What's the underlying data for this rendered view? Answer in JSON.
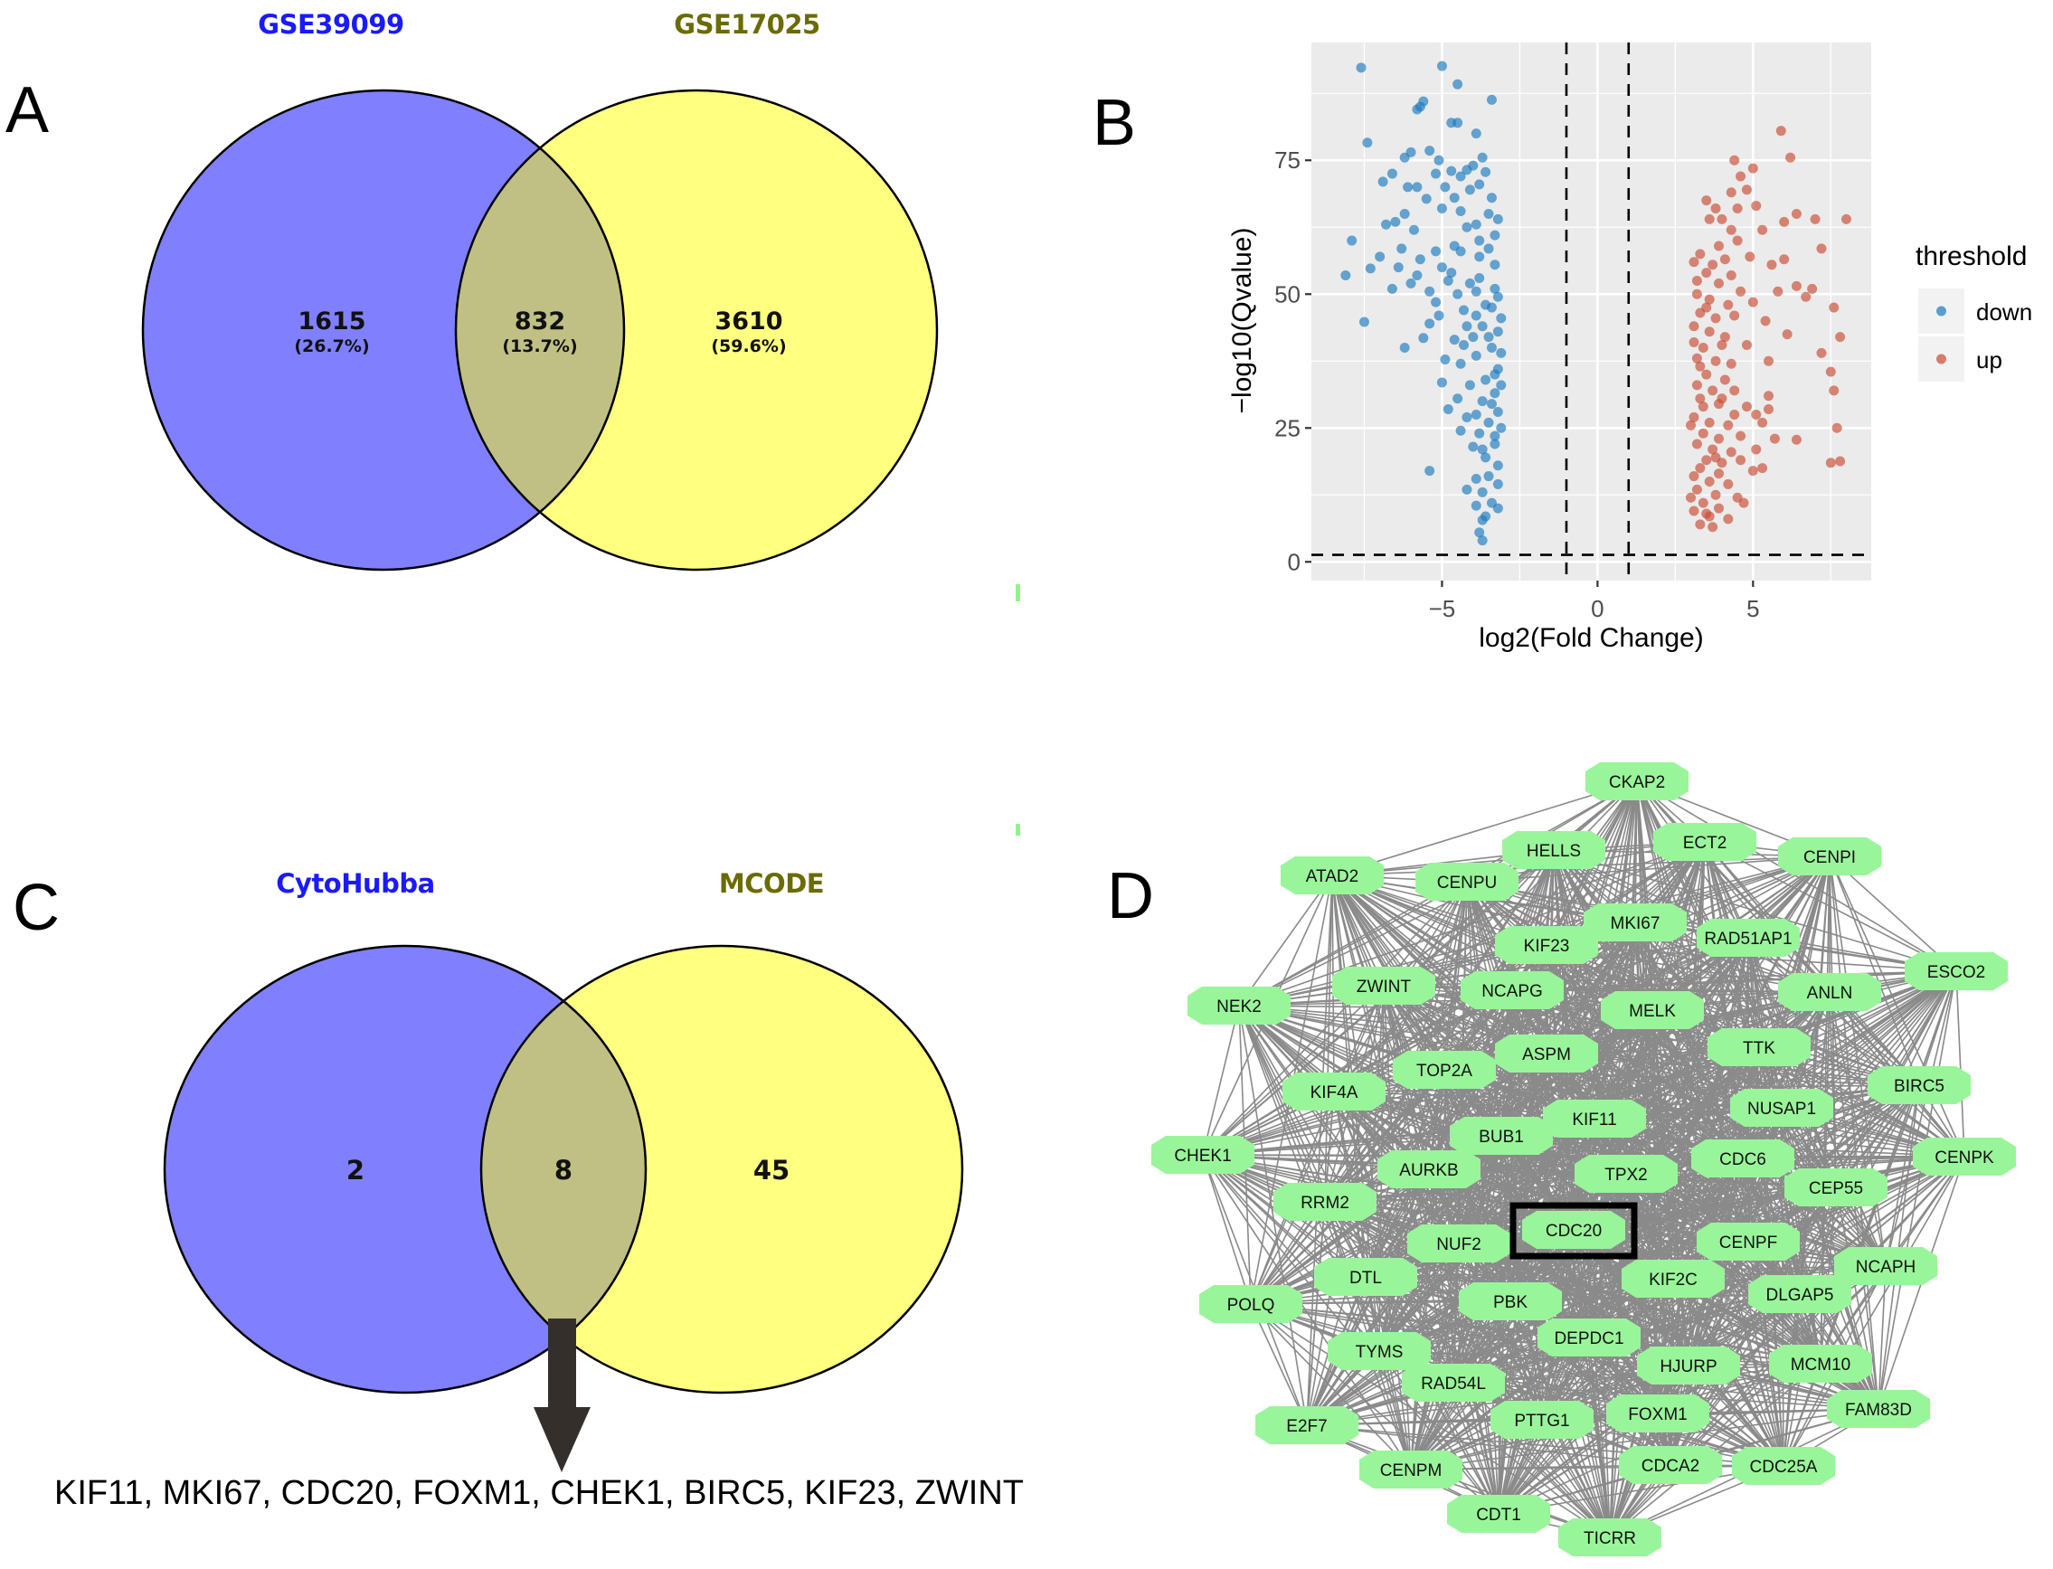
{
  "panels": {
    "A": {
      "letter": "A",
      "sets": [
        {
          "name": "GSE39099",
          "color": "#1a1aff",
          "fill": "#8080ff"
        },
        {
          "name": "GSE17025",
          "color": "#6b6b00",
          "fill": "#ffff80"
        }
      ],
      "overlap_fill": "#c0c084",
      "regions": [
        {
          "region": "GSE39099 only",
          "count": "1615",
          "percent": "(26.7%)"
        },
        {
          "region": "both",
          "count": "832",
          "percent": "(13.7%)"
        },
        {
          "region": "GSE17025 only",
          "count": "3610",
          "percent": "(59.6%)"
        }
      ]
    },
    "B": {
      "letter": "B"
    },
    "C": {
      "letter": "C",
      "sets": [
        {
          "name": "CytoHubba",
          "color": "#1a1aff",
          "fill": "#8080ff"
        },
        {
          "name": "MCODE",
          "color": "#6b6b00",
          "fill": "#ffff80"
        }
      ],
      "overlap_fill": "#c0c084",
      "regions": [
        {
          "region": "CytoHubba only",
          "count": "2"
        },
        {
          "region": "both",
          "count": "8"
        },
        {
          "region": "MCODE only",
          "count": "45"
        }
      ],
      "arrow_color": "#352f2b",
      "overlap_genes": "KIF11, MKI67, CDC20, FOXM1, CHEK1, BIRC5, KIF23, ZWINT"
    },
    "D": {
      "letter": "D",
      "node_fill": "#99f599",
      "edge_color": "#8a8a8a",
      "highlighted": "CDC20",
      "edges": "all-pairs (dense hub network)"
    }
  },
  "chart_data": {
    "type": "scatter",
    "title": "",
    "xlabel": "log2(Fold Change)",
    "ylabel": "−log10(Qvalue)",
    "xlim": [
      -9.2,
      8.8
    ],
    "ylim": [
      -3.5,
      97
    ],
    "xticks": [
      -5,
      0,
      5
    ],
    "xtick_labels": [
      "−5",
      "0",
      "5"
    ],
    "yticks": [
      0,
      25,
      50,
      75
    ],
    "ytick_labels": [
      "0",
      "25",
      "50",
      "75"
    ],
    "grid": true,
    "background": "#ebebeb",
    "thresholds": {
      "vertical": [
        -1,
        1
      ],
      "horizontal": 1.3
    },
    "legend": {
      "title": "threshold",
      "placement": "right",
      "entries": [
        {
          "label": "down",
          "color": "#1f77b4"
        },
        {
          "label": "up",
          "color": "#cd4f39"
        }
      ]
    },
    "series": [
      {
        "name": "down",
        "color": "#1a7abf",
        "points": [
          [
            -7.6,
            92.3
          ],
          [
            -5.0,
            92.6
          ],
          [
            -4.5,
            89.2
          ],
          [
            -5.8,
            84.5
          ],
          [
            -5.6,
            86.0
          ],
          [
            -5.7,
            85.0
          ],
          [
            -3.4,
            86.3
          ],
          [
            -4.7,
            82.0
          ],
          [
            -4.5,
            82.0
          ],
          [
            -3.9,
            80.0
          ],
          [
            -7.4,
            78.3
          ],
          [
            -6.2,
            75.5
          ],
          [
            -5.4,
            76.8
          ],
          [
            -6.0,
            76.5
          ],
          [
            -5.1,
            75.0
          ],
          [
            -4.7,
            73.0
          ],
          [
            -4.2,
            73.2
          ],
          [
            -3.6,
            72.8
          ],
          [
            -6.6,
            72.5
          ],
          [
            -6.9,
            71.0
          ],
          [
            -6.1,
            70.0
          ],
          [
            -5.8,
            70.0
          ],
          [
            -5.2,
            72.5
          ],
          [
            -4.4,
            72.0
          ],
          [
            -4.0,
            74.0
          ],
          [
            -3.7,
            75.5
          ],
          [
            -4.1,
            69.5
          ],
          [
            -4.6,
            68.0
          ],
          [
            -5.5,
            67.8
          ],
          [
            -5.0,
            66.0
          ],
          [
            -6.2,
            65.0
          ],
          [
            -6.5,
            63.5
          ],
          [
            -5.9,
            62.0
          ],
          [
            -4.2,
            62.5
          ],
          [
            -3.5,
            65.0
          ],
          [
            -3.2,
            64.0
          ],
          [
            -3.8,
            60.0
          ],
          [
            -3.5,
            58.5
          ],
          [
            -4.4,
            58.0
          ],
          [
            -5.2,
            58.0
          ],
          [
            -7.9,
            60.0
          ],
          [
            -7.0,
            57.0
          ],
          [
            -6.4,
            55.0
          ],
          [
            -5.7,
            56.5
          ],
          [
            -5.0,
            55.0
          ],
          [
            -4.7,
            54.0
          ],
          [
            -3.3,
            55.5
          ],
          [
            -3.8,
            53.0
          ],
          [
            -4.1,
            52.0
          ],
          [
            -8.1,
            53.5
          ],
          [
            -7.3,
            54.8
          ],
          [
            -6.6,
            51.0
          ],
          [
            -6.0,
            52.0
          ],
          [
            -5.4,
            50.5
          ],
          [
            -4.5,
            50.0
          ],
          [
            -3.9,
            50.5
          ],
          [
            -3.3,
            51.0
          ],
          [
            -3.6,
            48.0
          ],
          [
            -4.3,
            47.0
          ],
          [
            -5.1,
            46.0
          ],
          [
            -5.4,
            44.5
          ],
          [
            -7.5,
            44.8
          ],
          [
            -3.7,
            44.0
          ],
          [
            -3.2,
            43.0
          ],
          [
            -4.0,
            42.0
          ],
          [
            -4.6,
            41.5
          ],
          [
            -5.6,
            41.8
          ],
          [
            -3.4,
            40.0
          ],
          [
            -3.9,
            38.5
          ],
          [
            -6.2,
            40.0
          ],
          [
            -4.4,
            37.0
          ],
          [
            -3.2,
            36.0
          ],
          [
            -3.6,
            34.0
          ],
          [
            -4.9,
            37.8
          ],
          [
            -4.1,
            33.0
          ],
          [
            -3.3,
            31.5
          ],
          [
            -3.7,
            30.0
          ],
          [
            -4.5,
            30.5
          ],
          [
            -3.2,
            28.0
          ],
          [
            -3.5,
            26.0
          ],
          [
            -4.2,
            27.0
          ],
          [
            -3.8,
            24.0
          ],
          [
            -3.3,
            22.0
          ],
          [
            -4.0,
            21.5
          ],
          [
            -3.6,
            19.5
          ],
          [
            -3.2,
            18.0
          ],
          [
            -5.4,
            17.0
          ],
          [
            -3.5,
            16.0
          ],
          [
            -3.9,
            15.5
          ],
          [
            -3.2,
            14.5
          ],
          [
            -3.7,
            13.0
          ],
          [
            -4.2,
            13.5
          ],
          [
            -3.4,
            11.0
          ],
          [
            -3.9,
            10.5
          ],
          [
            -3.2,
            10.0
          ],
          [
            -3.6,
            8.5
          ],
          [
            -3.7,
            7.8
          ],
          [
            -3.8,
            5.5
          ],
          [
            -3.7,
            4.0
          ],
          [
            -3.3,
            35.0
          ],
          [
            -3.1,
            45.5
          ],
          [
            -3.1,
            39.0
          ],
          [
            -3.2,
            49.5
          ],
          [
            -3.4,
            47.5
          ],
          [
            -3.9,
            46.0
          ],
          [
            -4.2,
            44.0
          ],
          [
            -3.5,
            42.0
          ],
          [
            -4.3,
            40.5
          ],
          [
            -3.8,
            57.0
          ],
          [
            -4.6,
            59.0
          ],
          [
            -3.3,
            61.0
          ],
          [
            -3.9,
            63.0
          ],
          [
            -4.4,
            65.5
          ],
          [
            -3.4,
            68.0
          ],
          [
            -3.8,
            70.5
          ],
          [
            -4.9,
            70.0
          ],
          [
            -3.1,
            33.0
          ],
          [
            -3.4,
            29.5
          ],
          [
            -3.9,
            27.5
          ],
          [
            -3.1,
            25.0
          ],
          [
            -3.3,
            23.5
          ],
          [
            -3.7,
            21.0
          ],
          [
            -4.4,
            24.5
          ],
          [
            -4.8,
            28.5
          ],
          [
            -5.0,
            33.5
          ],
          [
            -5.2,
            48.5
          ],
          [
            -4.8,
            52.5
          ],
          [
            -5.8,
            53.5
          ],
          [
            -6.3,
            58.5
          ],
          [
            -6.8,
            63.0
          ]
        ]
      },
      {
        "name": "up",
        "color": "#c94a33",
        "points": [
          [
            5.9,
            80.5
          ],
          [
            6.2,
            75.5
          ],
          [
            4.4,
            75.0
          ],
          [
            5.0,
            73.5
          ],
          [
            4.6,
            72.0
          ],
          [
            4.3,
            69.0
          ],
          [
            4.8,
            69.5
          ],
          [
            3.5,
            67.5
          ],
          [
            3.8,
            66.0
          ],
          [
            4.5,
            66.0
          ],
          [
            6.4,
            65.0
          ],
          [
            5.1,
            66.5
          ],
          [
            7.0,
            64.0
          ],
          [
            8.0,
            64.0
          ],
          [
            6.0,
            63.5
          ],
          [
            3.6,
            64.0
          ],
          [
            4.0,
            64.0
          ],
          [
            4.3,
            62.0
          ],
          [
            5.3,
            62.0
          ],
          [
            3.3,
            57.5
          ],
          [
            3.9,
            59.0
          ],
          [
            4.5,
            60.0
          ],
          [
            7.2,
            58.5
          ],
          [
            4.9,
            57.0
          ],
          [
            5.6,
            55.5
          ],
          [
            6.0,
            56.5
          ],
          [
            3.1,
            56.0
          ],
          [
            3.5,
            54.0
          ],
          [
            3.9,
            52.0
          ],
          [
            4.3,
            53.5
          ],
          [
            6.4,
            51.5
          ],
          [
            6.9,
            51.0
          ],
          [
            5.8,
            50.5
          ],
          [
            4.6,
            50.5
          ],
          [
            3.2,
            50.0
          ],
          [
            3.6,
            49.0
          ],
          [
            4.2,
            48.0
          ],
          [
            5.0,
            48.5
          ],
          [
            6.7,
            49.5
          ],
          [
            7.6,
            47.5
          ],
          [
            3.3,
            46.5
          ],
          [
            3.8,
            45.5
          ],
          [
            4.4,
            46.0
          ],
          [
            5.4,
            45.0
          ],
          [
            3.1,
            44.0
          ],
          [
            3.6,
            43.0
          ],
          [
            4.1,
            42.0
          ],
          [
            7.8,
            42.0
          ],
          [
            3.4,
            40.0
          ],
          [
            4.0,
            40.5
          ],
          [
            4.8,
            40.5
          ],
          [
            6.1,
            42.5
          ],
          [
            7.2,
            39.0
          ],
          [
            3.2,
            38.0
          ],
          [
            3.8,
            37.5
          ],
          [
            4.3,
            37.0
          ],
          [
            5.5,
            37.5
          ],
          [
            3.5,
            35.0
          ],
          [
            4.1,
            34.0
          ],
          [
            7.5,
            35.5
          ],
          [
            3.2,
            33.0
          ],
          [
            3.7,
            32.0
          ],
          [
            4.4,
            32.0
          ],
          [
            5.5,
            31.0
          ],
          [
            7.6,
            32.0
          ],
          [
            3.3,
            30.5
          ],
          [
            3.9,
            29.5
          ],
          [
            4.8,
            29.0
          ],
          [
            5.1,
            27.5
          ],
          [
            5.5,
            28.5
          ],
          [
            3.1,
            27.0
          ],
          [
            3.6,
            26.0
          ],
          [
            4.2,
            25.5
          ],
          [
            5.3,
            26.0
          ],
          [
            7.7,
            25.0
          ],
          [
            3.4,
            24.0
          ],
          [
            3.9,
            23.0
          ],
          [
            4.6,
            23.5
          ],
          [
            5.7,
            23.0
          ],
          [
            6.4,
            22.8
          ],
          [
            3.2,
            22.0
          ],
          [
            3.7,
            21.0
          ],
          [
            4.3,
            20.5
          ],
          [
            5.1,
            21.0
          ],
          [
            3.5,
            19.0
          ],
          [
            4.0,
            18.5
          ],
          [
            4.6,
            19.0
          ],
          [
            7.5,
            18.5
          ],
          [
            7.8,
            18.8
          ],
          [
            3.3,
            17.5
          ],
          [
            3.9,
            16.5
          ],
          [
            5.0,
            17.0
          ],
          [
            5.3,
            17.5
          ],
          [
            3.6,
            15.0
          ],
          [
            4.2,
            14.5
          ],
          [
            3.2,
            13.5
          ],
          [
            3.8,
            12.5
          ],
          [
            4.5,
            12.0
          ],
          [
            3.4,
            11.0
          ],
          [
            3.9,
            10.0
          ],
          [
            3.1,
            9.5
          ],
          [
            3.6,
            8.5
          ],
          [
            4.2,
            8.0
          ],
          [
            3.3,
            7.0
          ],
          [
            3.7,
            6.5
          ],
          [
            3.5,
            9.0
          ],
          [
            4.7,
            11.0
          ],
          [
            3.0,
            12.0
          ],
          [
            3.3,
            36.5
          ],
          [
            3.1,
            41.0
          ],
          [
            3.5,
            47.5
          ],
          [
            3.2,
            52.5
          ],
          [
            3.7,
            55.5
          ],
          [
            4.1,
            56.5
          ],
          [
            3.4,
            29.0
          ],
          [
            3.0,
            25.5
          ],
          [
            3.8,
            19.5
          ],
          [
            3.1,
            16.0
          ],
          [
            4.4,
            27.5
          ],
          [
            4.0,
            30.5
          ]
        ]
      }
    ]
  },
  "network": {
    "nodes": [
      {
        "id": "CKAP2"
      },
      {
        "id": "HELLS"
      },
      {
        "id": "ECT2"
      },
      {
        "id": "CENPI"
      },
      {
        "id": "ATAD2"
      },
      {
        "id": "CENPU"
      },
      {
        "id": "MKI67"
      },
      {
        "id": "KIF23"
      },
      {
        "id": "RAD51AP1"
      },
      {
        "id": "ESCO2"
      },
      {
        "id": "ZWINT"
      },
      {
        "id": "NCAPG"
      },
      {
        "id": "ANLN"
      },
      {
        "id": "NEK2"
      },
      {
        "id": "MELK"
      },
      {
        "id": "TTK"
      },
      {
        "id": "ASPM"
      },
      {
        "id": "TOP2A"
      },
      {
        "id": "KIF4A"
      },
      {
        "id": "BIRC5"
      },
      {
        "id": "NUSAP1"
      },
      {
        "id": "KIF11"
      },
      {
        "id": "BUB1"
      },
      {
        "id": "CHEK1"
      },
      {
        "id": "CENPK"
      },
      {
        "id": "CDC6"
      },
      {
        "id": "AURKB"
      },
      {
        "id": "TPX2"
      },
      {
        "id": "CEP55"
      },
      {
        "id": "RRM2"
      },
      {
        "id": "CDC20"
      },
      {
        "id": "NUF2"
      },
      {
        "id": "CENPF"
      },
      {
        "id": "NCAPH"
      },
      {
        "id": "DTL"
      },
      {
        "id": "KIF2C"
      },
      {
        "id": "DLGAP5"
      },
      {
        "id": "POLQ"
      },
      {
        "id": "PBK"
      },
      {
        "id": "DEPDC1"
      },
      {
        "id": "TYMS"
      },
      {
        "id": "HJURP"
      },
      {
        "id": "MCM10"
      },
      {
        "id": "RAD54L"
      },
      {
        "id": "FAM83D"
      },
      {
        "id": "E2F7"
      },
      {
        "id": "PTTG1"
      },
      {
        "id": "FOXM1"
      },
      {
        "id": "CENPM"
      },
      {
        "id": "CDCA2"
      },
      {
        "id": "CDC25A"
      },
      {
        "id": "CDT1"
      },
      {
        "id": "TICRR"
      }
    ]
  }
}
